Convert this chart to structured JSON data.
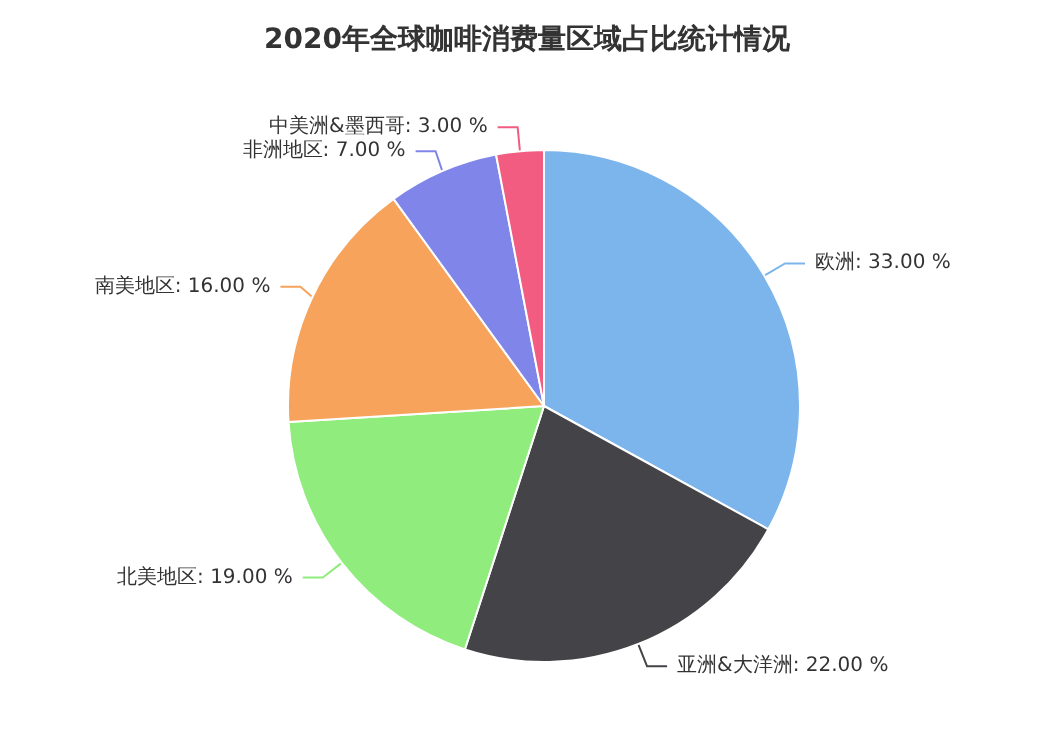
{
  "chart_data": {
    "type": "pie",
    "title": "2020年全球咖啡消费量区域占比统计情况",
    "categories": [
      "欧洲",
      "亚洲&大洋洲",
      "北美地区",
      "南美地区",
      "非洲地区",
      "中美洲&墨西哥"
    ],
    "values": [
      33,
      22,
      19,
      16,
      7,
      3
    ],
    "value_labels": [
      "33.00 %",
      "22.00 %",
      "19.00 %",
      "16.00 %",
      "7.00 %",
      "3.00 %"
    ],
    "colors": [
      "#7cb5ec",
      "#434348",
      "#90ed7d",
      "#f7a35c",
      "#8085e9",
      "#f15c80"
    ],
    "legend": false
  }
}
